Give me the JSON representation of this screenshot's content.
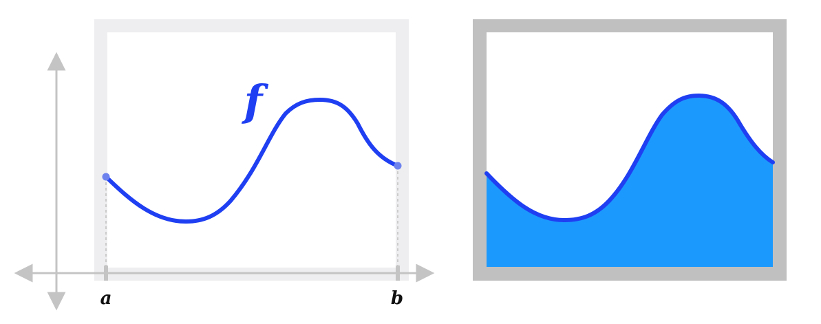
{
  "left_panel": {
    "function_label": "f",
    "x_labels": {
      "a": "a",
      "b": "b"
    }
  },
  "colors": {
    "curve": "#1f3ff2",
    "area_fill": "#1c99fd",
    "endpoint_dot": "#6e82ee",
    "left_frame": "#eeeef0",
    "right_frame": "#c0c0c0",
    "axes": "#c4c4c4",
    "guide_lines": "#cccccc"
  }
}
